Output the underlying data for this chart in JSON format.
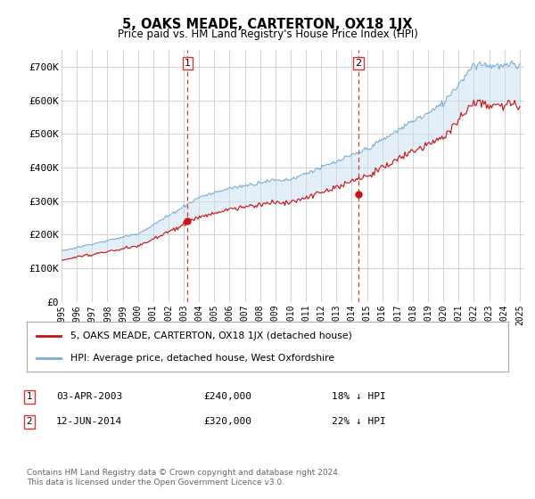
{
  "title": "5, OAKS MEADE, CARTERTON, OX18 1JX",
  "subtitle": "Price paid vs. HM Land Registry's House Price Index (HPI)",
  "ylim": [
    0,
    750000
  ],
  "yticks": [
    0,
    100000,
    200000,
    300000,
    400000,
    500000,
    600000,
    700000
  ],
  "ytick_labels": [
    "£0",
    "£100K",
    "£200K",
    "£300K",
    "£400K",
    "£500K",
    "£600K",
    "£700K"
  ],
  "x_start_year": 1995,
  "x_end_year": 2025,
  "hpi_color": "#7aaed6",
  "hpi_fill_color": "#c8dff0",
  "price_color": "#cc1111",
  "vline_color": "#dd3333",
  "marker1_year": 2003.25,
  "marker1_price": 240000,
  "marker2_year": 2014.45,
  "marker2_price": 320000,
  "legend_label1": "5, OAKS MEADE, CARTERTON, OX18 1JX (detached house)",
  "legend_label2": "HPI: Average price, detached house, West Oxfordshire",
  "note1_date": "03-APR-2003",
  "note1_price": "£240,000",
  "note1_hpi": "18% ↓ HPI",
  "note2_date": "12-JUN-2014",
  "note2_price": "£320,000",
  "note2_hpi": "22% ↓ HPI",
  "footer": "Contains HM Land Registry data © Crown copyright and database right 2024.\nThis data is licensed under the Open Government Licence v3.0.",
  "background_color": "#ffffff",
  "grid_color": "#cccccc"
}
